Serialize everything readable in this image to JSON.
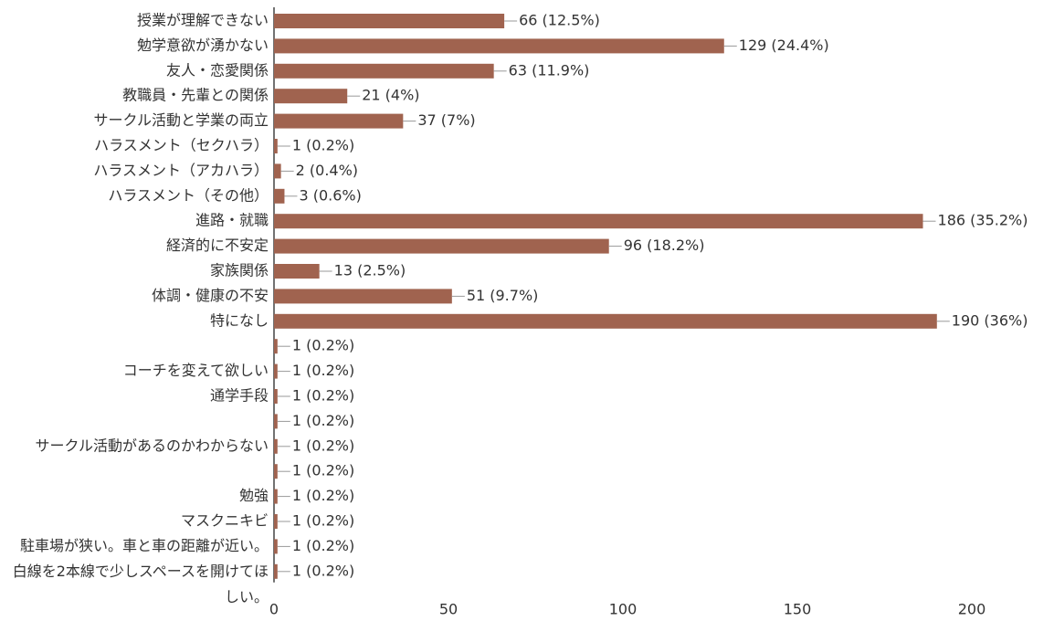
{
  "chart_data": {
    "type": "bar",
    "orientation": "horizontal",
    "color": "#a0634f",
    "categories": [
      "授業が理解できない",
      "勉学意欲が湧かない",
      "友人・恋愛関係",
      "教職員・先輩との関係",
      "サークル活動と学業の両立",
      "ハラスメント（セクハラ）",
      "ハラスメント（アカハラ）",
      "ハラスメント（その他）",
      "進路・就職",
      "経済的に不安定",
      "家族関係",
      "体調・健康の不安",
      "特になし",
      null,
      "コーチを変えて欲しい",
      "通学手段",
      null,
      "サークル活動があるのかわからない",
      null,
      "勉強",
      "マスクニキビ",
      null,
      "駐車場が狭い。車と車の距離が近い。白線を2本線で少しスペースを開けてほしい。"
    ],
    "values": [
      66,
      129,
      63,
      21,
      37,
      1,
      2,
      3,
      186,
      96,
      13,
      51,
      190,
      1,
      1,
      1,
      1,
      1,
      1,
      1,
      1,
      1,
      1
    ],
    "value_labels": [
      "66 (12.5%)",
      "129 (24.4%)",
      "63 (11.9%)",
      "21 (4%)",
      "37 (7%)",
      "1 (0.2%)",
      "2 (0.4%)",
      "3 (0.6%)",
      "186 (35.2%)",
      "96 (18.2%)",
      "13 (2.5%)",
      "51 (9.7%)",
      "190 (36%)",
      "1 (0.2%)",
      "1 (0.2%)",
      "1 (0.2%)",
      "1 (0.2%)",
      "1 (0.2%)",
      "1 (0.2%)",
      "1 (0.2%)",
      "1 (0.2%)",
      "1 (0.2%)",
      "1 (0.2%)"
    ],
    "xlim": [
      0,
      200
    ],
    "xticks": [
      0,
      50,
      100,
      150,
      200
    ]
  }
}
